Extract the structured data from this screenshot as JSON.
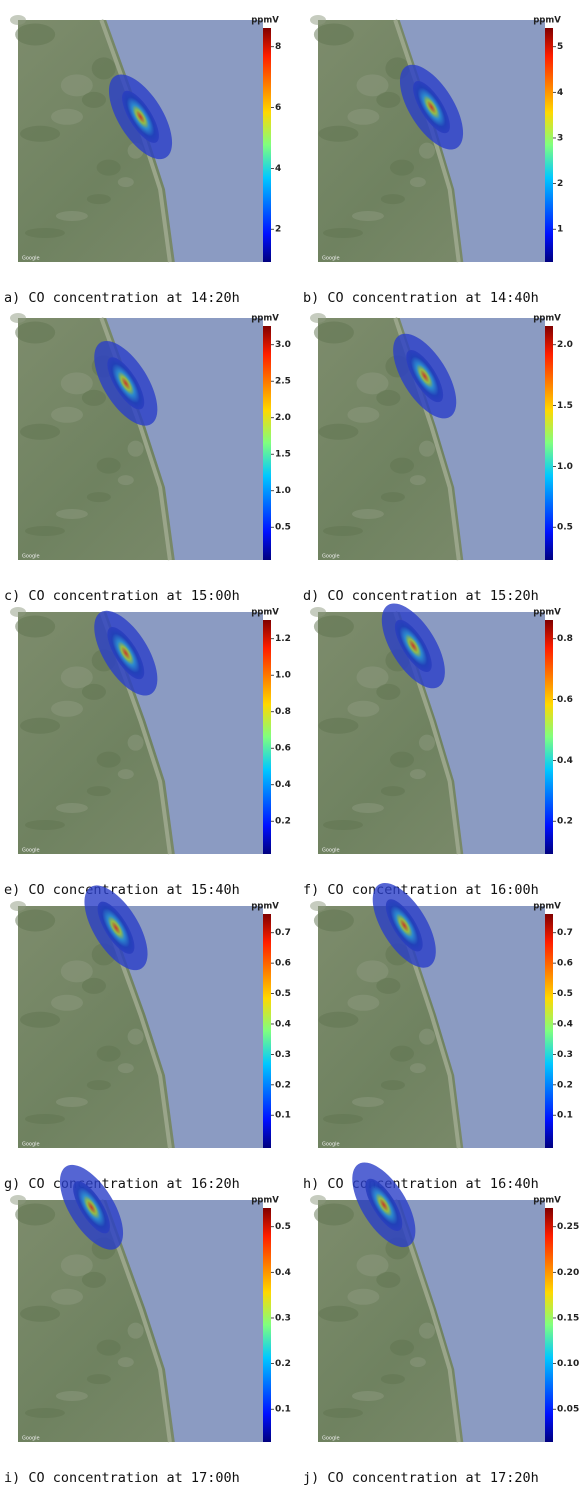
{
  "map_attribution": "Google",
  "panels": [
    {
      "caption": "a) CO concentration at 14:20h",
      "unit": "ppmV",
      "ticks": [
        "8",
        "6",
        "4",
        "2"
      ]
    },
    {
      "caption": "b) CO concentration at 14:40h",
      "unit": "ppmV",
      "ticks": [
        "5",
        "4",
        "3",
        "2",
        "1"
      ]
    },
    {
      "caption": "c) CO concentration at 15:00h",
      "unit": "ppmV",
      "ticks": [
        "3.0",
        "2.5",
        "2.0",
        "1.5",
        "1.0",
        "0.5"
      ]
    },
    {
      "caption": "d) CO concentration at 15:20h",
      "unit": "ppmV",
      "ticks": [
        "2.0",
        "1.5",
        "1.0",
        "0.5"
      ]
    },
    {
      "caption": "e) CO concentration at 15:40h",
      "unit": "ppmV",
      "ticks": [
        "1.2",
        "1.0",
        "0.8",
        "0.6",
        "0.4",
        "0.2"
      ]
    },
    {
      "caption": "f) CO concentration at 16:00h",
      "unit": "ppmV",
      "ticks": [
        "0.8",
        "0.6",
        "0.4",
        "0.2"
      ]
    },
    {
      "caption": "g) CO concentration at 16:20h",
      "unit": "ppmV",
      "ticks": [
        "0.7",
        "0.6",
        "0.5",
        "0.4",
        "0.3",
        "0.2",
        "0.1"
      ]
    },
    {
      "caption": "h) CO concentration at 16:40h",
      "unit": "ppmV",
      "ticks": [
        "0.7",
        "0.6",
        "0.5",
        "0.4",
        "0.3",
        "0.2",
        "0.1"
      ]
    },
    {
      "caption": "i) CO concentration at 17:00h",
      "unit": "ppmV",
      "ticks": [
        "0.5",
        "0.4",
        "0.3",
        "0.2",
        "0.1"
      ]
    },
    {
      "caption": "j) CO concentration at 17:20h",
      "unit": "ppmV",
      "ticks": [
        "0.25",
        "0.20",
        "0.15",
        "0.10",
        "0.05"
      ]
    }
  ]
}
